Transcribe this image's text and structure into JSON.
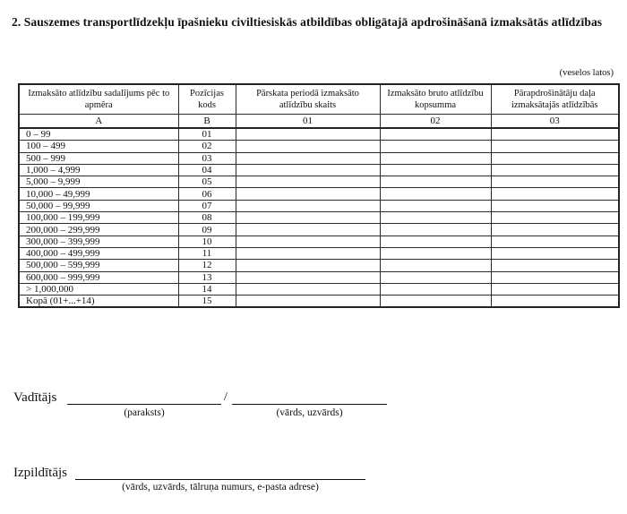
{
  "page": {
    "title": "2. Sauszemes transportlīdzekļu īpašnieku civiltiesiskās atbildības obligātajā apdrošināšanā izmaksātās atlīdzības",
    "unit_note": "(veselos latos)"
  },
  "table": {
    "columns": [
      {
        "label": "Izmaksāto atlīdzību sadalījums pēc to apmēra",
        "code": "A"
      },
      {
        "label": "Pozīcijas kods",
        "code": "B"
      },
      {
        "label": "Pārskata periodā izmaksāto atlīdzību skaits",
        "code": "01"
      },
      {
        "label": "Izmaksāto bruto atlīdzību kopsumma",
        "code": "02"
      },
      {
        "label": "Pārapdrošinātāju daļa izmaksātajās atlīdzībās",
        "code": "03"
      }
    ],
    "rows": [
      {
        "label": "0 – 99",
        "code": "01",
        "values": [
          "",
          "",
          ""
        ]
      },
      {
        "label": "100 – 499",
        "code": "02",
        "values": [
          "",
          "",
          ""
        ]
      },
      {
        "label": "500 – 999",
        "code": "03",
        "values": [
          "",
          "",
          ""
        ]
      },
      {
        "label": "1,000 – 4,999",
        "code": "04",
        "values": [
          "",
          "",
          ""
        ]
      },
      {
        "label": "5,000 – 9,999",
        "code": "05",
        "values": [
          "",
          "",
          ""
        ]
      },
      {
        "label": "10,000 – 49,999",
        "code": "06",
        "values": [
          "",
          "",
          ""
        ]
      },
      {
        "label": "50,000 – 99,999",
        "code": "07",
        "values": [
          "",
          "",
          ""
        ]
      },
      {
        "label": "100,000 – 199,999",
        "code": "08",
        "values": [
          "",
          "",
          ""
        ]
      },
      {
        "label": "200,000 – 299,999",
        "code": "09",
        "values": [
          "",
          "",
          ""
        ]
      },
      {
        "label": "300,000 – 399,999",
        "code": "10",
        "values": [
          "",
          "",
          ""
        ]
      },
      {
        "label": "400,000 – 499,999",
        "code": "11",
        "values": [
          "",
          "",
          ""
        ]
      },
      {
        "label": "500,000 – 599,999",
        "code": "12",
        "values": [
          "",
          "",
          ""
        ]
      },
      {
        "label": "600,000 – 999,999",
        "code": "13",
        "values": [
          "",
          "",
          ""
        ]
      },
      {
        "label": "> 1,000,000",
        "code": "14",
        "values": [
          "",
          "",
          ""
        ]
      },
      {
        "label": "Kopā (01+...+14)",
        "code": "15",
        "values": [
          "",
          "",
          ""
        ]
      }
    ]
  },
  "signatures": {
    "manager_label": "Vadītājs",
    "separator": "/",
    "manager_signature_caption": "(paraksts)",
    "manager_name_caption": "(vārds, uzvārds)",
    "executor_label": "Izpildītājs",
    "executor_caption": "(vārds, uzvārds, tālruņa numurs, e-pasta adrese)"
  },
  "colors": {
    "ink": "#111111",
    "border": "#2b2b2b",
    "background": "#ffffff"
  }
}
